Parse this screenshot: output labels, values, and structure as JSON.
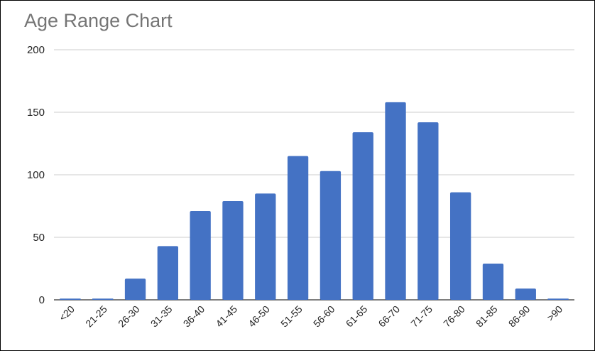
{
  "chart_data": {
    "type": "bar",
    "title": "Age Range Chart",
    "xlabel": "",
    "ylabel": "",
    "categories": [
      "<20",
      "21-25",
      "26-30",
      "31-35",
      "36-40",
      "41-45",
      "46-50",
      "51-55",
      "56-60",
      "61-65",
      "66-70",
      "71-75",
      "76-80",
      "81-85",
      "86-90",
      ">90"
    ],
    "values": [
      1,
      1,
      17,
      43,
      71,
      79,
      85,
      115,
      103,
      134,
      158,
      142,
      86,
      29,
      9,
      1
    ],
    "ylim": [
      0,
      200
    ],
    "yticks": [
      0,
      50,
      100,
      150,
      200
    ],
    "bar_color": "#4472c4",
    "grid": true,
    "legend": "none"
  }
}
